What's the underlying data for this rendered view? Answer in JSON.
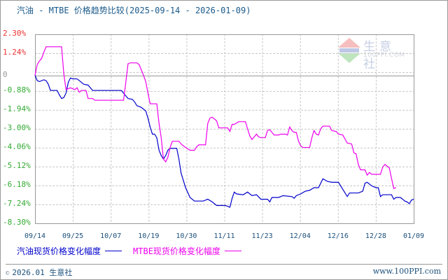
{
  "title": "汽油 - MTBE 价格趋势比较(2025-09-14 - 2026-01-09)",
  "colors": {
    "gasoline": "#0000cc",
    "mtbe": "#ee00ee",
    "positive_label": "#ee3333",
    "negative_label": "#33aa33",
    "zero_label": "#999999",
    "axis_label": "#1a4f7a",
    "grid": "#c8c8c8"
  },
  "y_axis": {
    "ticks": [
      {
        "label": "2.30%",
        "value": 2.3,
        "sign": "pos"
      },
      {
        "label": "1.24%",
        "value": 1.24,
        "sign": "pos"
      },
      {
        "label": "0",
        "value": 0,
        "sign": "zero"
      },
      {
        "label": "-0.88%",
        "value": -0.88,
        "sign": "neg"
      },
      {
        "label": "-1.94%",
        "value": -1.94,
        "sign": "neg"
      },
      {
        "label": "-3.00%",
        "value": -3.0,
        "sign": "neg"
      },
      {
        "label": "-4.06%",
        "value": -4.06,
        "sign": "neg"
      },
      {
        "label": "-5.12%",
        "value": -5.12,
        "sign": "neg"
      },
      {
        "label": "-6.18%",
        "value": -6.18,
        "sign": "neg"
      },
      {
        "label": "-7.24%",
        "value": -7.24,
        "sign": "neg"
      },
      {
        "label": "-8.30%",
        "value": -8.3,
        "sign": "neg"
      }
    ]
  },
  "x_axis": {
    "ticks": [
      "09/14",
      "09/25",
      "10/07",
      "10/19",
      "10/30",
      "11/11",
      "11/23",
      "12/04",
      "12/16",
      "12/28",
      "01/09"
    ]
  },
  "legend": {
    "gasoline_label": "汽油现货价格变化幅度",
    "mtbe_label": "MTBE现货价格变化幅度"
  },
  "watermark": {
    "brand": "生意社",
    "site": "100PPI.COM",
    "logo_text": "PPI"
  },
  "footer": {
    "copyright_symbol": "©",
    "copyright": "2026.01 生意社",
    "website": "www.100PPI.com"
  },
  "chart_data": {
    "type": "line",
    "title": "汽油 - MTBE 价格趋势比较(2025-09-14 - 2026-01-09)",
    "xlabel": "",
    "ylabel": "",
    "ylim": [
      -8.3,
      2.3
    ],
    "grid": true,
    "legend_position": "bottom",
    "x_range": [
      "2025-09-14",
      "2026-01-09"
    ],
    "categories": [
      "09/14",
      "09/25",
      "10/07",
      "10/19",
      "10/30",
      "11/11",
      "11/23",
      "12/04",
      "12/16",
      "12/28",
      "01/09"
    ],
    "series": [
      {
        "name": "汽油现货价格变化幅度",
        "color": "#0000cc",
        "points": [
          [
            0,
            0
          ],
          [
            1,
            -0.3
          ],
          [
            2,
            -0.35
          ],
          [
            4,
            -0.25
          ],
          [
            5,
            -0.3
          ],
          [
            6,
            -0.5
          ],
          [
            7,
            -0.85
          ],
          [
            10,
            -0.85
          ],
          [
            11,
            -1.1
          ],
          [
            12,
            -1.3
          ],
          [
            13,
            -1.25
          ],
          [
            14,
            -1.0
          ],
          [
            15,
            -0.4
          ],
          [
            16,
            -0.15
          ],
          [
            17,
            -0.2
          ],
          [
            19,
            -0.2
          ],
          [
            20,
            -0.3
          ],
          [
            22,
            -0.5
          ],
          [
            24,
            -0.55
          ],
          [
            26,
            -0.85
          ],
          [
            39,
            -0.85
          ],
          [
            40,
            -1.0
          ],
          [
            42,
            -1.3
          ],
          [
            44,
            -1.35
          ],
          [
            45,
            -1.5
          ],
          [
            46,
            -1.7
          ],
          [
            48,
            -1.8
          ],
          [
            50,
            -2.0
          ],
          [
            51,
            -2.4
          ],
          [
            52,
            -2.9
          ],
          [
            53,
            -3.3
          ],
          [
            54,
            -3.3
          ],
          [
            55,
            -3.5
          ],
          [
            56,
            -4.2
          ],
          [
            57,
            -4.5
          ],
          [
            58,
            -4.7
          ],
          [
            59,
            -4.5
          ],
          [
            60,
            -4.2
          ],
          [
            61,
            -4.1
          ],
          [
            64,
            -4.1
          ],
          [
            65,
            -4.7
          ],
          [
            66,
            -5.5
          ],
          [
            68,
            -6.3
          ],
          [
            70,
            -6.85
          ],
          [
            72,
            -7.05
          ],
          [
            76,
            -7.05
          ],
          [
            78,
            -6.95
          ],
          [
            80,
            -7.1
          ],
          [
            82,
            -7.3
          ],
          [
            86,
            -7.3
          ],
          [
            88,
            -7.4
          ],
          [
            89,
            -6.9
          ],
          [
            90,
            -6.55
          ],
          [
            91,
            -6.65
          ],
          [
            94,
            -6.7
          ],
          [
            96,
            -6.55
          ],
          [
            98,
            -6.75
          ],
          [
            100,
            -6.7
          ],
          [
            102,
            -6.95
          ],
          [
            105,
            -6.95
          ],
          [
            106,
            -7.1
          ],
          [
            107,
            -6.85
          ],
          [
            110,
            -6.85
          ],
          [
            112,
            -6.75
          ],
          [
            116,
            -6.8
          ],
          [
            117,
            -6.9
          ],
          [
            118,
            -6.75
          ],
          [
            120,
            -6.65
          ],
          [
            122,
            -6.5
          ],
          [
            124,
            -6.45
          ],
          [
            126,
            -6.3
          ],
          [
            128,
            -6.3
          ],
          [
            130,
            -5.8
          ],
          [
            132,
            -5.95
          ],
          [
            134,
            -6.0
          ],
          [
            137,
            -6.0
          ],
          [
            139,
            -6.4
          ],
          [
            141,
            -6.8
          ],
          [
            142,
            -6.6
          ],
          [
            146,
            -6.6
          ],
          [
            148,
            -6.5
          ],
          [
            149,
            -6.05
          ],
          [
            150,
            -6.0
          ],
          [
            152,
            -6.2
          ],
          [
            154,
            -6.3
          ],
          [
            155,
            -6.3
          ],
          [
            156,
            -6.8
          ],
          [
            157,
            -6.7
          ],
          [
            161,
            -6.7
          ],
          [
            162,
            -6.95
          ],
          [
            163,
            -6.85
          ],
          [
            165,
            -6.85
          ],
          [
            166,
            -6.95
          ],
          [
            167,
            -7.05
          ],
          [
            168,
            -7.1
          ],
          [
            169,
            -7.2
          ],
          [
            170,
            -7.0
          ],
          [
            171,
            -6.95
          ]
        ]
      },
      {
        "name": "MTBE现货价格变化幅度",
        "color": "#ee00ee",
        "points": [
          [
            0,
            0
          ],
          [
            1,
            0.6
          ],
          [
            2,
            0.8
          ],
          [
            3,
            0.95
          ],
          [
            4,
            1.3
          ],
          [
            5,
            1.6
          ],
          [
            12,
            1.6
          ],
          [
            13,
            0.1
          ],
          [
            14,
            -0.8
          ],
          [
            15,
            -0.75
          ],
          [
            16,
            -0.7
          ],
          [
            18,
            -0.8
          ],
          [
            19,
            -0.7
          ],
          [
            20,
            -0.95
          ],
          [
            21,
            -0.85
          ],
          [
            23,
            -0.85
          ],
          [
            24,
            -1.3
          ],
          [
            26,
            -1.3
          ],
          [
            27,
            -1.4
          ],
          [
            40,
            -1.4
          ],
          [
            41,
            -0.4
          ],
          [
            42,
            0.65
          ],
          [
            43,
            0.7
          ],
          [
            46,
            0.7
          ],
          [
            47,
            0.6
          ],
          [
            48,
            0.3
          ],
          [
            49,
            0.0
          ],
          [
            50,
            -0.35
          ],
          [
            51,
            -1.0
          ],
          [
            52,
            -1.6
          ],
          [
            55,
            -1.6
          ],
          [
            56,
            -2.7
          ],
          [
            57,
            -3.5
          ],
          [
            58,
            -4.7
          ],
          [
            59,
            -4.85
          ],
          [
            60,
            -4.6
          ],
          [
            61,
            -4.05
          ],
          [
            62,
            -3.7
          ],
          [
            65,
            -3.7
          ],
          [
            66,
            -3.85
          ],
          [
            68,
            -4.05
          ],
          [
            70,
            -4.2
          ],
          [
            72,
            -4.2
          ],
          [
            73,
            -4.0
          ],
          [
            74,
            -3.9
          ],
          [
            77,
            -3.9
          ],
          [
            78,
            -2.7
          ],
          [
            79,
            -2.4
          ],
          [
            80,
            -2.35
          ],
          [
            82,
            -2.55
          ],
          [
            83,
            -2.95
          ],
          [
            87,
            -2.95
          ],
          [
            88,
            -3.15
          ],
          [
            89,
            -2.75
          ],
          [
            90,
            -2.75
          ],
          [
            92,
            -2.6
          ],
          [
            95,
            -2.6
          ],
          [
            96,
            -3.0
          ],
          [
            97,
            -3.4
          ],
          [
            98,
            -3.6
          ],
          [
            100,
            -3.3
          ],
          [
            101,
            -3.45
          ],
          [
            102,
            -3.5
          ],
          [
            104,
            -3.5
          ],
          [
            105,
            -3.1
          ],
          [
            106,
            -3.05
          ],
          [
            107,
            -3.2
          ],
          [
            108,
            -3.35
          ],
          [
            110,
            -3.35
          ],
          [
            111,
            -3.3
          ],
          [
            113,
            -3.3
          ],
          [
            114,
            -3.35
          ],
          [
            115,
            -2.9
          ],
          [
            116,
            -3.1
          ],
          [
            117,
            -3.2
          ],
          [
            118,
            -3.2
          ],
          [
            119,
            -3.7
          ],
          [
            120,
            -3.95
          ],
          [
            121,
            -4.05
          ],
          [
            124,
            -4.05
          ],
          [
            125,
            -3.5
          ],
          [
            126,
            -3.1
          ],
          [
            127,
            -3.3
          ],
          [
            128,
            -3.35
          ],
          [
            129,
            -3.0
          ],
          [
            130,
            -2.85
          ],
          [
            133,
            -2.85
          ],
          [
            134,
            -3.1
          ],
          [
            136,
            -3.15
          ],
          [
            137,
            -3.3
          ],
          [
            139,
            -3.35
          ],
          [
            141,
            -3.8
          ],
          [
            143,
            -3.85
          ],
          [
            144,
            -4.35
          ],
          [
            145,
            -4.4
          ],
          [
            146,
            -5.0
          ],
          [
            147,
            -5.3
          ],
          [
            149,
            -5.3
          ],
          [
            150,
            -5.6
          ],
          [
            151,
            -5.45
          ],
          [
            152,
            -5.55
          ],
          [
            156,
            -5.55
          ],
          [
            157,
            -5.15
          ],
          [
            158,
            -5.0
          ],
          [
            160,
            -5.2
          ],
          [
            161,
            -5.8
          ],
          [
            162,
            -6.35
          ],
          [
            163,
            -6.3
          ]
        ]
      }
    ]
  }
}
